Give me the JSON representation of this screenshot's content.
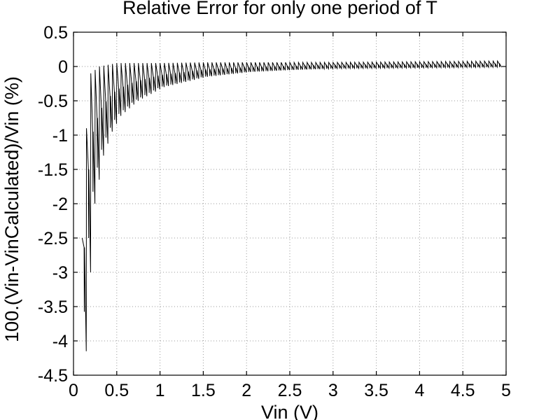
{
  "chart_data": {
    "type": "line",
    "title": "Relative Error for only one period of T",
    "xlabel": "Vin (V)",
    "ylabel": "100.(Vin-VinCalculated)/Vin   (%)",
    "xlim": [
      0,
      5
    ],
    "ylim": [
      -4.5,
      0.5
    ],
    "xticks": [
      0,
      0.5,
      1,
      1.5,
      2,
      2.5,
      3,
      3.5,
      4,
      4.5,
      5
    ],
    "yticks": [
      0.5,
      0,
      -0.5,
      -1,
      -1.5,
      -2,
      -2.5,
      -3,
      -3.5,
      -4,
      -4.5
    ],
    "xtick_labels": [
      "0",
      "0.5",
      "1",
      "1.5",
      "2",
      "2.5",
      "3",
      "3.5",
      "4",
      "4.5",
      "5"
    ],
    "ytick_labels": [
      "0.5",
      "0",
      "-0.5",
      "-1",
      "-1.5",
      "-2",
      "-2.5",
      "-3",
      "-3.5",
      "-4",
      "-4.5"
    ],
    "grid": true,
    "line_color": "#000000",
    "series": [
      {
        "x_start": 0.1,
        "x_end": 4.9,
        "sawtooth_period": 0.05,
        "envelope_upper": [
          [
            0.1,
            -2.5
          ],
          [
            0.15,
            -0.9
          ],
          [
            0.2,
            -0.1
          ],
          [
            0.3,
            0.0
          ],
          [
            0.5,
            0.05
          ],
          [
            0.7,
            0.05
          ],
          [
            1.0,
            0.05
          ],
          [
            1.5,
            0.06
          ],
          [
            2.0,
            0.06
          ],
          [
            3.0,
            0.06
          ],
          [
            4.0,
            0.07
          ],
          [
            4.9,
            0.08
          ]
        ],
        "envelope_lower": [
          [
            0.1,
            -4.15
          ],
          [
            0.15,
            -3.0
          ],
          [
            0.2,
            -2.0
          ],
          [
            0.3,
            -1.3
          ],
          [
            0.4,
            -0.95
          ],
          [
            0.5,
            -0.72
          ],
          [
            0.7,
            -0.5
          ],
          [
            1.0,
            -0.3
          ],
          [
            1.5,
            -0.15
          ],
          [
            2.0,
            -0.08
          ],
          [
            2.5,
            -0.05
          ],
          [
            3.0,
            -0.03
          ],
          [
            4.0,
            -0.02
          ],
          [
            4.9,
            -0.01
          ]
        ]
      }
    ]
  }
}
